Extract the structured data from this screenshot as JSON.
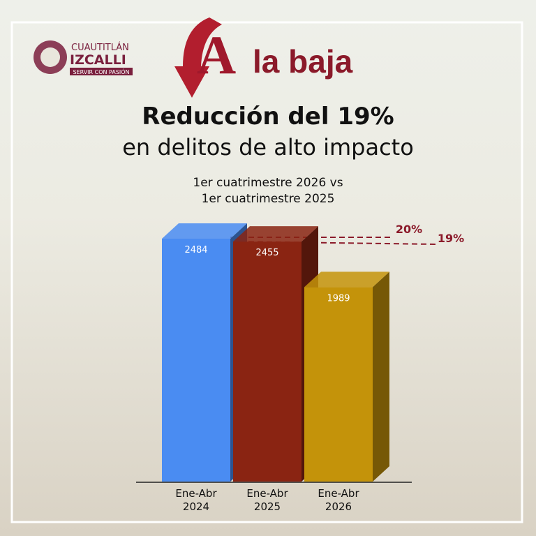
{
  "header": {
    "brand_top": "CUAUTITLÁN",
    "brand_main": "IZCALLI",
    "brand_tag": "SERVIR CON PASIÓN",
    "headline_letter": "A",
    "headline": "la baja"
  },
  "chart_data": {
    "type": "bar3d",
    "title": "Reducción del 19%",
    "subtitle": "en delitos de alto impacto",
    "note": [
      "1er cuatrimestre 2026 vs",
      "1er cuatrimestre 2025"
    ],
    "categories": [
      "Ene-Abr 2024",
      "Ene-Abr 2025",
      "Ene-Abr 2026"
    ],
    "values": [
      2484,
      2455,
      1989
    ],
    "colors": [
      "#4a8cf2",
      "#8a2412",
      "#c4930a"
    ],
    "annotations": [
      "20%",
      "19%"
    ]
  }
}
